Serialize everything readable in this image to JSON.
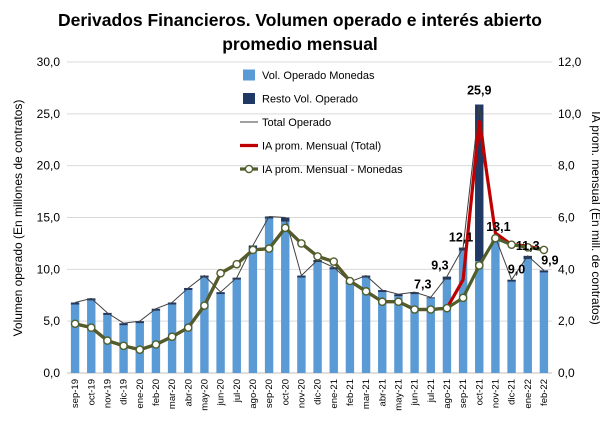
{
  "chart_data": {
    "type": "bar",
    "title_lines": [
      "Derivados Financieros. Volumen operado e interés abierto",
      "promedio mensual"
    ],
    "ylabel": "Volumen operado (En millones de contratos)",
    "y2label": "IA prom. mensual (En mill. de contratos)",
    "ylim": [
      0,
      30
    ],
    "y2lim": [
      0,
      12
    ],
    "yticks": [
      "0,0",
      "5,0",
      "10,0",
      "15,0",
      "20,0",
      "25,0",
      "30,0"
    ],
    "y2ticks": [
      "0,0",
      "2,0",
      "4,0",
      "6,0",
      "8,0",
      "10,0",
      "12,0"
    ],
    "grid": true,
    "legend_position": "top-center",
    "categories": [
      "sep-19",
      "oct-19",
      "nov-19",
      "dic-19",
      "ene-20",
      "feb-20",
      "mar-20",
      "abr-20",
      "may-20",
      "jun-20",
      "jul-20",
      "ago-20",
      "sep-20",
      "oct-20",
      "nov-20",
      "dic-20",
      "ene-21",
      "feb-21",
      "mar-21",
      "abr-21",
      "may-21",
      "jun-21",
      "jul-21",
      "ago-21",
      "sep-21",
      "oct-21",
      "nov-21",
      "dic-21",
      "ene-22",
      "feb-22"
    ],
    "series": [
      {
        "name": "Vol. Operado Monedas",
        "kind": "bar",
        "axis": "left",
        "color": "#5b9bd5",
        "values": [
          6.6,
          7.0,
          5.6,
          4.6,
          4.8,
          6.0,
          6.6,
          8.0,
          9.2,
          7.6,
          9.0,
          12.0,
          14.9,
          14.6,
          9.2,
          10.7,
          10.0,
          8.6,
          9.2,
          7.8,
          7.4,
          7.6,
          7.2,
          9.0,
          11.8,
          10.8,
          12.9,
          8.8,
          11.0,
          9.7
        ]
      },
      {
        "name": "Resto Vol. Operado",
        "kind": "bar-stack",
        "axis": "left",
        "color": "#1f3864",
        "values": [
          0.2,
          0.2,
          0.2,
          0.2,
          0.2,
          0.2,
          0.2,
          0.2,
          0.2,
          0.2,
          0.2,
          0.3,
          0.2,
          0.4,
          0.2,
          0.2,
          0.2,
          0.2,
          0.2,
          0.2,
          0.2,
          0.2,
          0.1,
          0.3,
          0.3,
          15.1,
          0.2,
          0.2,
          0.3,
          0.2
        ]
      },
      {
        "name": "Total Operado",
        "kind": "line",
        "axis": "left",
        "color": "#404040",
        "values": [
          6.8,
          7.2,
          5.8,
          4.8,
          5.0,
          6.2,
          6.8,
          8.2,
          9.4,
          7.8,
          9.2,
          12.3,
          15.1,
          15.0,
          9.4,
          10.9,
          10.2,
          8.8,
          9.4,
          8.0,
          7.6,
          7.8,
          7.3,
          9.3,
          12.1,
          25.9,
          13.1,
          9.0,
          11.3,
          9.9
        ]
      },
      {
        "name": "IA prom. Mensual (Total)",
        "kind": "line",
        "axis": "right",
        "color": "#c00000",
        "values": [
          1.9,
          1.75,
          1.25,
          1.05,
          0.9,
          1.1,
          1.4,
          1.75,
          2.6,
          3.85,
          4.2,
          4.75,
          4.8,
          5.6,
          5.0,
          4.5,
          4.3,
          3.55,
          3.15,
          2.75,
          2.75,
          2.45,
          2.45,
          2.5,
          3.6,
          9.7,
          5.4,
          4.95,
          4.9,
          4.75
        ]
      },
      {
        "name": "IA prom. Mensual - Monedas",
        "kind": "line-marker",
        "axis": "right",
        "color": "#4f5e2a",
        "values": [
          1.9,
          1.75,
          1.25,
          1.05,
          0.9,
          1.1,
          1.4,
          1.75,
          2.6,
          3.85,
          4.2,
          4.75,
          4.8,
          5.6,
          5.0,
          4.5,
          4.3,
          3.55,
          3.15,
          2.75,
          2.75,
          2.45,
          2.45,
          2.5,
          2.9,
          4.15,
          5.2,
          4.95,
          4.85,
          4.75
        ]
      }
    ],
    "data_labels": [
      {
        "index": 22,
        "text": "7,3"
      },
      {
        "index": 23,
        "text": "9,3"
      },
      {
        "index": 24,
        "text": "12,1"
      },
      {
        "index": 25,
        "text": "25,9"
      },
      {
        "index": 26,
        "text": "13,1"
      },
      {
        "index": 27,
        "text": "9,0"
      },
      {
        "index": 28,
        "text": "11,3"
      },
      {
        "index": 29,
        "text": "9,9"
      }
    ]
  }
}
